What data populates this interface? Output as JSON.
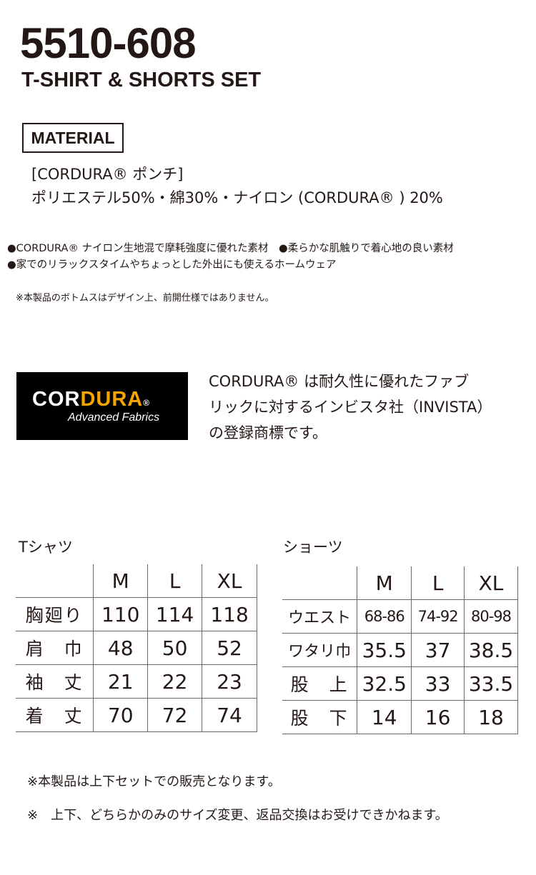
{
  "header": {
    "code": "5510-608",
    "subtitle": "T-SHIRT & SHORTS SET"
  },
  "material": {
    "label": "MATERIAL",
    "name": "[CORDURA® ポンチ]",
    "composition": "ポリエステル50%・綿30%・ナイロン (CORDURA® ) 20%"
  },
  "features": [
    "●CORDURA® ナイロン生地混で摩耗強度に優れた素材　●柔らかな肌触りで着心地の良い素材",
    "●家でのリラックスタイムやちょっとした外出にも使えるホームウェア"
  ],
  "note": "※本製品のボトムスはデザイン上、前開仕様ではありません。",
  "logo": {
    "brand": "CORDURA®",
    "tagline": "Advanced Fabrics"
  },
  "cordura_desc": [
    "CORDURA® は耐久性に優れたファブ",
    "リックに対するインビスタ社（INVISTA）",
    "の登録商標です。"
  ],
  "tshirt": {
    "caption": "Tシャツ",
    "sizes": [
      "M",
      "L",
      "XL"
    ],
    "rows": [
      {
        "label": "胸廻り",
        "values": [
          "110",
          "114",
          "118"
        ]
      },
      {
        "label": "肩　巾",
        "values": [
          "48",
          "50",
          "52"
        ]
      },
      {
        "label": "袖　丈",
        "values": [
          "21",
          "22",
          "23"
        ]
      },
      {
        "label": "着　丈",
        "values": [
          "70",
          "72",
          "74"
        ]
      }
    ]
  },
  "shorts": {
    "caption": "ショーツ",
    "sizes": [
      "M",
      "L",
      "XL"
    ],
    "rows": [
      {
        "label": "ウエスト",
        "values": [
          "68-86",
          "74-92",
          "80-98"
        ]
      },
      {
        "label": "ワタリ巾",
        "values": [
          "35.5",
          "37",
          "38.5"
        ]
      },
      {
        "label": "股　上",
        "values": [
          "32.5",
          "33",
          "33.5"
        ]
      },
      {
        "label": "股　下",
        "values": [
          "14",
          "16",
          "18"
        ]
      }
    ]
  },
  "footer": [
    "※本製品は上下セットでの販売となります。",
    "※　上下、どちらかのみのサイズ変更、返品交換はお受けできかねます。"
  ]
}
